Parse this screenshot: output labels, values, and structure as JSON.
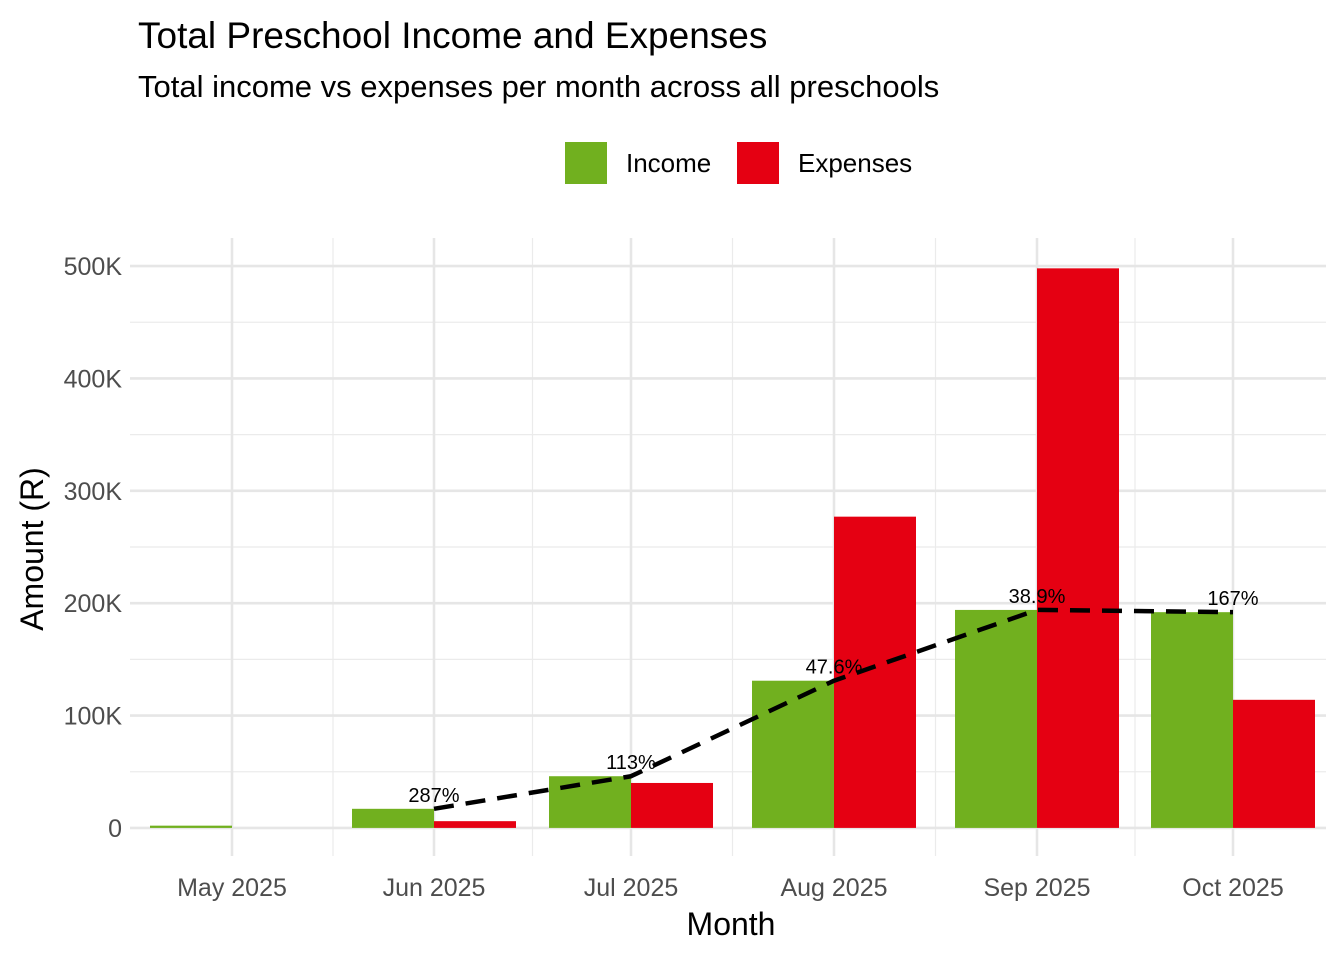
{
  "chart_data": {
    "type": "bar",
    "title": "Total Preschool Income and Expenses",
    "subtitle": "Total income vs expenses per month across all preschools",
    "xlabel": "Month",
    "ylabel": "Amount (R)",
    "categories": [
      "May 2025",
      "Jun 2025",
      "Jul 2025",
      "Aug 2025",
      "Sep 2025",
      "Oct 2025"
    ],
    "series": [
      {
        "name": "Income",
        "color": "#71b01f",
        "values": [
          2000,
          17000,
          46000,
          131000,
          194000,
          192000
        ]
      },
      {
        "name": "Expenses",
        "color": "#e50012",
        "values": [
          0,
          6000,
          40000,
          277000,
          498000,
          114000
        ]
      }
    ],
    "overlay_line": {
      "style": "dashed",
      "color": "#000000",
      "points": [
        {
          "x": "Jun 2025",
          "y": 17000,
          "label": "287%"
        },
        {
          "x": "Jul 2025",
          "y": 46000,
          "label": "113%"
        },
        {
          "x": "Aug 2025",
          "y": 131000,
          "label": "47.6%"
        },
        {
          "x": "Sep 2025",
          "y": 194000,
          "label": "38.9%"
        },
        {
          "x": "Oct 2025",
          "y": 192000,
          "label": "167%"
        }
      ]
    },
    "y_ticks": [
      0,
      100000,
      200000,
      300000,
      400000,
      500000
    ],
    "y_tick_labels": [
      "0",
      "100K",
      "200K",
      "300K",
      "400K",
      "500K"
    ],
    "ylim": [
      -25000,
      525000
    ],
    "grid": true,
    "legend_position": "top"
  }
}
